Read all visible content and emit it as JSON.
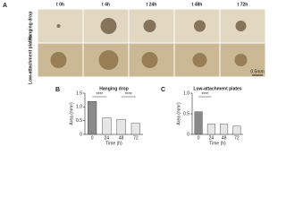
{
  "panel_a": {
    "label": "A",
    "columns": [
      "t 0h",
      "t 4h",
      "t 24h",
      "t 48h",
      "t 72h"
    ],
    "rows": [
      "Hanging drop",
      "Low-attachment plates"
    ],
    "scale_bar": "0.5mm"
  },
  "chart_data": [
    {
      "type": "bar",
      "panel": "B",
      "title": "Hanging drop",
      "ylabel": "Area (mm²)",
      "xlabel": "Time (h)",
      "categories": [
        "0",
        "24",
        "48",
        "72"
      ],
      "values": [
        1.2,
        0.6,
        0.55,
        0.4
      ],
      "colors": [
        "#8a8a8a",
        "#e6e6e6",
        "#e6e6e6",
        "#e6e6e6"
      ],
      "ylim": [
        0,
        1.5
      ],
      "yticks": [
        0,
        0.5,
        {
          "value": 1,
          "label": "1.0"
        },
        1.5
      ],
      "annotations": [
        "****",
        "****"
      ]
    },
    {
      "type": "bar",
      "panel": "C",
      "title": "Low-attachment plates",
      "ylabel": "Area (mm²)",
      "xlabel": "Time (h)",
      "categories": [
        "0",
        "24",
        "48",
        "72"
      ],
      "values": [
        0.55,
        0.25,
        0.25,
        0.2
      ],
      "colors": [
        "#8a8a8a",
        "#e6e6e6",
        "#e6e6e6",
        "#e6e6e6"
      ],
      "ylim": [
        0,
        1
      ],
      "yticks": [
        0,
        0.5,
        {
          "value": 1,
          "label": "1.0"
        }
      ],
      "annotations": [
        "****"
      ]
    }
  ]
}
